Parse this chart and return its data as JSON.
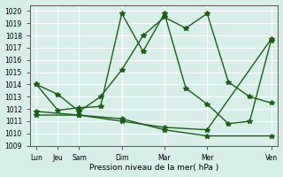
{
  "background_color": "#d8eee8",
  "grid_color": "#ffffff",
  "line_color": "#1a5e1a",
  "xlabel": "Pression niveau de la mer( hPa )",
  "ylim": [
    1009,
    1020.5
  ],
  "yticks": [
    1009,
    1010,
    1011,
    1012,
    1013,
    1014,
    1015,
    1016,
    1017,
    1018,
    1019,
    1020
  ],
  "xtick_labels": [
    "Lun",
    "Jeu",
    "Sam",
    "Dim",
    "Mar",
    "Mer",
    "Ven"
  ],
  "xtick_pos": [
    0,
    1,
    2,
    4,
    6,
    8,
    11
  ],
  "series1_x": [
    0,
    1,
    2,
    3,
    4,
    5,
    6,
    7,
    8,
    9,
    10,
    11
  ],
  "series1_y": [
    1014.0,
    1013.2,
    1011.8,
    1013.0,
    1015.2,
    1018.0,
    1019.5,
    1018.6,
    1019.8,
    1014.2,
    1013.0,
    1012.5
  ],
  "series2_x": [
    0,
    1,
    2,
    3,
    4,
    5,
    6,
    7,
    8,
    9,
    10,
    11
  ],
  "series2_y": [
    1014.0,
    1011.9,
    1012.1,
    1012.2,
    1019.8,
    1016.7,
    1019.8,
    1013.7,
    1012.4,
    1010.8,
    1011.0,
    1017.6
  ],
  "series3_x": [
    0,
    2,
    4,
    6,
    8,
    11
  ],
  "series3_y": [
    1011.8,
    1011.5,
    1011.2,
    1010.3,
    1009.8,
    1009.8
  ],
  "series4_x": [
    0,
    2,
    4,
    6,
    8,
    11
  ],
  "series4_y": [
    1011.5,
    1011.5,
    1011.0,
    1010.5,
    1010.3,
    1017.7
  ]
}
